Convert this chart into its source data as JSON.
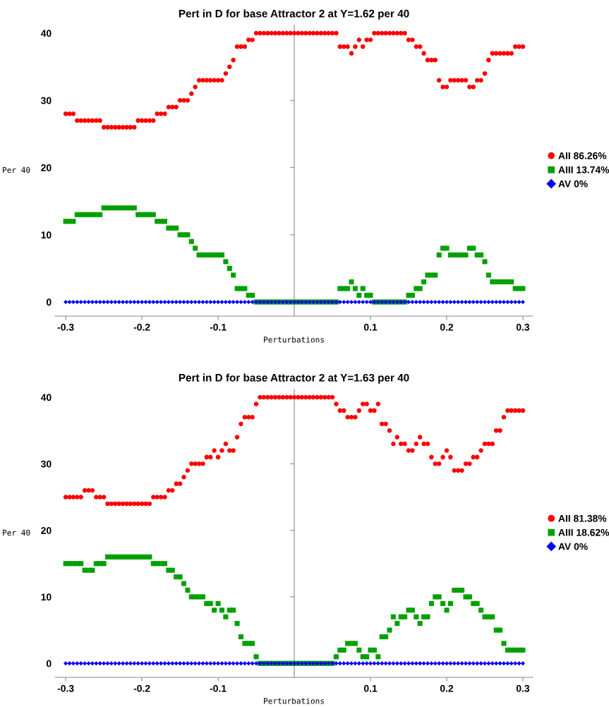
{
  "chart_data": [
    {
      "type": "scatter",
      "title": "Pert in D for base Attractor 2 at Y=1.62 per 40",
      "xlabel": "Perturbations",
      "ylabel": "Per 40",
      "legend": "right",
      "grid": false,
      "x": [
        -0.3,
        -0.295,
        -0.29,
        -0.285,
        -0.28,
        -0.275,
        -0.27,
        -0.265,
        -0.26,
        -0.255,
        -0.25,
        -0.245,
        -0.24,
        -0.235,
        -0.23,
        -0.225,
        -0.22,
        -0.215,
        -0.21,
        -0.205,
        -0.2,
        -0.195,
        -0.19,
        -0.185,
        -0.18,
        -0.175,
        -0.17,
        -0.165,
        -0.16,
        -0.155,
        -0.15,
        -0.145,
        -0.14,
        -0.135,
        -0.13,
        -0.125,
        -0.12,
        -0.115,
        -0.11,
        -0.105,
        -0.1,
        -0.095,
        -0.09,
        -0.085,
        -0.08,
        -0.075,
        -0.07,
        -0.065,
        -0.06,
        -0.055,
        -0.05,
        -0.045,
        -0.04,
        -0.035,
        -0.03,
        -0.025,
        -0.02,
        -0.015,
        -0.01,
        -0.005,
        0,
        0.005,
        0.01,
        0.015,
        0.02,
        0.025,
        0.03,
        0.035,
        0.04,
        0.045,
        0.05,
        0.055,
        0.06,
        0.065,
        0.07,
        0.075,
        0.08,
        0.085,
        0.09,
        0.095,
        0.1,
        0.105,
        0.11,
        0.115,
        0.12,
        0.125,
        0.13,
        0.135,
        0.14,
        0.145,
        0.15,
        0.155,
        0.16,
        0.165,
        0.17,
        0.175,
        0.18,
        0.185,
        0.19,
        0.195,
        0.2,
        0.205,
        0.21,
        0.215,
        0.22,
        0.225,
        0.23,
        0.235,
        0.24,
        0.245,
        0.25,
        0.255,
        0.26,
        0.265,
        0.27,
        0.275,
        0.28,
        0.285,
        0.29,
        0.295,
        0.3
      ],
      "xlim": [
        -0.314,
        0.313
      ],
      "xticks": [
        -0.3,
        -0.2,
        -0.1,
        0.1,
        0.2,
        0.3
      ],
      "ylim": [
        -2.1,
        41.2
      ],
      "yticks": [
        0,
        10,
        20,
        30,
        40
      ],
      "series": [
        {
          "name": "AII 86.26%",
          "color": "#ff0000",
          "marker": "circle",
          "values": [
            28,
            28,
            28,
            27,
            27,
            27,
            27,
            27,
            27,
            27,
            26,
            26,
            26,
            26,
            26,
            26,
            26,
            26,
            26,
            27,
            27,
            27,
            27,
            27,
            28,
            28,
            28,
            29,
            29,
            29,
            30,
            30,
            30,
            31,
            32,
            33,
            33,
            33,
            33,
            33,
            33,
            33,
            34,
            35,
            36,
            38,
            38,
            38,
            39,
            39,
            40,
            40,
            40,
            40,
            40,
            40,
            40,
            40,
            40,
            40,
            40,
            40,
            40,
            40,
            40,
            40,
            40,
            40,
            40,
            40,
            40,
            40,
            38,
            38,
            38,
            37,
            38,
            39,
            38,
            39,
            39,
            40,
            40,
            40,
            40,
            40,
            40,
            40,
            40,
            40,
            39,
            39,
            38,
            38,
            37,
            36,
            36,
            36,
            33,
            32,
            32,
            33,
            33,
            33,
            33,
            33,
            32,
            32,
            33,
            33,
            34,
            36,
            37,
            37,
            37,
            37,
            37,
            37,
            38,
            38,
            38
          ]
        },
        {
          "name": "AIII 13.74%",
          "color": "#00a000",
          "marker": "square",
          "values": [
            12,
            12,
            12,
            13,
            13,
            13,
            13,
            13,
            13,
            13,
            14,
            14,
            14,
            14,
            14,
            14,
            14,
            14,
            14,
            13,
            13,
            13,
            13,
            13,
            12,
            12,
            12,
            11,
            11,
            11,
            10,
            10,
            10,
            9,
            8,
            7,
            7,
            7,
            7,
            7,
            7,
            7,
            6,
            5,
            4,
            2,
            2,
            2,
            1,
            1,
            0,
            0,
            0,
            0,
            0,
            0,
            0,
            0,
            0,
            0,
            0,
            0,
            0,
            0,
            0,
            0,
            0,
            0,
            0,
            0,
            0,
            0,
            2,
            2,
            2,
            3,
            2,
            1,
            2,
            1,
            1,
            0,
            0,
            0,
            0,
            0,
            0,
            0,
            0,
            0,
            1,
            1,
            2,
            2,
            3,
            4,
            4,
            4,
            7,
            8,
            8,
            7,
            7,
            7,
            7,
            7,
            8,
            8,
            7,
            7,
            6,
            4,
            3,
            3,
            3,
            3,
            3,
            3,
            2,
            2,
            2
          ]
        },
        {
          "name": "AV 0%",
          "color": "#0000ff",
          "marker": "diamond",
          "values": [
            0,
            0,
            0,
            0,
            0,
            0,
            0,
            0,
            0,
            0,
            0,
            0,
            0,
            0,
            0,
            0,
            0,
            0,
            0,
            0,
            0,
            0,
            0,
            0,
            0,
            0,
            0,
            0,
            0,
            0,
            0,
            0,
            0,
            0,
            0,
            0,
            0,
            0,
            0,
            0,
            0,
            0,
            0,
            0,
            0,
            0,
            0,
            0,
            0,
            0,
            0,
            0,
            0,
            0,
            0,
            0,
            0,
            0,
            0,
            0,
            0,
            0,
            0,
            0,
            0,
            0,
            0,
            0,
            0,
            0,
            0,
            0,
            0,
            0,
            0,
            0,
            0,
            0,
            0,
            0,
            0,
            0,
            0,
            0,
            0,
            0,
            0,
            0,
            0,
            0,
            0,
            0,
            0,
            0,
            0,
            0,
            0,
            0,
            0,
            0,
            0,
            0,
            0,
            0,
            0,
            0,
            0,
            0,
            0,
            0,
            0,
            0,
            0,
            0,
            0,
            0,
            0,
            0,
            0,
            0,
            0
          ]
        }
      ]
    },
    {
      "type": "scatter",
      "title": "Pert in D for base Attractor 2 at Y=1.63 per 40",
      "xlabel": "Perturbations",
      "ylabel": "Per 40",
      "legend": "right",
      "grid": false,
      "x": [
        -0.3,
        -0.295,
        -0.29,
        -0.285,
        -0.28,
        -0.275,
        -0.27,
        -0.265,
        -0.26,
        -0.255,
        -0.25,
        -0.245,
        -0.24,
        -0.235,
        -0.23,
        -0.225,
        -0.22,
        -0.215,
        -0.21,
        -0.205,
        -0.2,
        -0.195,
        -0.19,
        -0.185,
        -0.18,
        -0.175,
        -0.17,
        -0.165,
        -0.16,
        -0.155,
        -0.15,
        -0.145,
        -0.14,
        -0.135,
        -0.13,
        -0.125,
        -0.12,
        -0.115,
        -0.11,
        -0.105,
        -0.1,
        -0.095,
        -0.09,
        -0.085,
        -0.08,
        -0.075,
        -0.07,
        -0.065,
        -0.06,
        -0.055,
        -0.05,
        -0.045,
        -0.04,
        -0.035,
        -0.03,
        -0.025,
        -0.02,
        -0.015,
        -0.01,
        -0.005,
        0,
        0.005,
        0.01,
        0.015,
        0.02,
        0.025,
        0.03,
        0.035,
        0.04,
        0.045,
        0.05,
        0.055,
        0.06,
        0.065,
        0.07,
        0.075,
        0.08,
        0.085,
        0.09,
        0.095,
        0.1,
        0.105,
        0.11,
        0.115,
        0.12,
        0.125,
        0.13,
        0.135,
        0.14,
        0.145,
        0.15,
        0.155,
        0.16,
        0.165,
        0.17,
        0.175,
        0.18,
        0.185,
        0.19,
        0.195,
        0.2,
        0.205,
        0.21,
        0.215,
        0.22,
        0.225,
        0.23,
        0.235,
        0.24,
        0.245,
        0.25,
        0.255,
        0.26,
        0.265,
        0.27,
        0.275,
        0.28,
        0.285,
        0.29,
        0.295,
        0.3
      ],
      "xlim": [
        -0.314,
        0.313
      ],
      "xticks": [
        -0.3,
        -0.2,
        -0.1,
        0.1,
        0.2,
        0.3
      ],
      "ylim": [
        -2.1,
        41.2
      ],
      "yticks": [
        0,
        10,
        20,
        30,
        40
      ],
      "series": [
        {
          "name": "AII 81.38%",
          "color": "#ff0000",
          "marker": "circle",
          "values": [
            25,
            25,
            25,
            25,
            25,
            26,
            26,
            26,
            25,
            25,
            25,
            24,
            24,
            24,
            24,
            24,
            24,
            24,
            24,
            24,
            24,
            24,
            24,
            25,
            25,
            25,
            25,
            26,
            26,
            27,
            27,
            28,
            29,
            30,
            30,
            30,
            30,
            31,
            31,
            32,
            31,
            32,
            33,
            32,
            32,
            34,
            36,
            37,
            37,
            37,
            39,
            40,
            40,
            40,
            40,
            40,
            40,
            40,
            40,
            40,
            40,
            40,
            40,
            40,
            40,
            40,
            40,
            40,
            40,
            40,
            40,
            39,
            38,
            38,
            37,
            37,
            37,
            38,
            39,
            39,
            38,
            38,
            39,
            36,
            36,
            35,
            33,
            34,
            33,
            33,
            32,
            32,
            33,
            34,
            33,
            33,
            31,
            30,
            30,
            31,
            32,
            31,
            29,
            29,
            29,
            30,
            30,
            31,
            31,
            32,
            33,
            33,
            33,
            35,
            35,
            37,
            38,
            38,
            38,
            38,
            38
          ]
        },
        {
          "name": "AIII 18.62%",
          "color": "#00a000",
          "marker": "square",
          "values": [
            15,
            15,
            15,
            15,
            15,
            14,
            14,
            14,
            15,
            15,
            15,
            16,
            16,
            16,
            16,
            16,
            16,
            16,
            16,
            16,
            16,
            16,
            16,
            15,
            15,
            15,
            15,
            14,
            14,
            13,
            13,
            12,
            11,
            10,
            10,
            10,
            10,
            9,
            9,
            8,
            9,
            8,
            7,
            8,
            8,
            6,
            4,
            3,
            3,
            3,
            1,
            0,
            0,
            0,
            0,
            0,
            0,
            0,
            0,
            0,
            0,
            0,
            0,
            0,
            0,
            0,
            0,
            0,
            0,
            0,
            0,
            1,
            2,
            2,
            3,
            3,
            3,
            2,
            1,
            1,
            2,
            2,
            1,
            4,
            4,
            5,
            7,
            6,
            7,
            7,
            8,
            8,
            7,
            6,
            7,
            7,
            9,
            10,
            10,
            9,
            8,
            9,
            11,
            11,
            11,
            10,
            10,
            9,
            9,
            8,
            7,
            7,
            7,
            5,
            5,
            3,
            2,
            2,
            2,
            2,
            2
          ]
        },
        {
          "name": "AV 0%",
          "color": "#0000ff",
          "marker": "diamond",
          "values": [
            0,
            0,
            0,
            0,
            0,
            0,
            0,
            0,
            0,
            0,
            0,
            0,
            0,
            0,
            0,
            0,
            0,
            0,
            0,
            0,
            0,
            0,
            0,
            0,
            0,
            0,
            0,
            0,
            0,
            0,
            0,
            0,
            0,
            0,
            0,
            0,
            0,
            0,
            0,
            0,
            0,
            0,
            0,
            0,
            0,
            0,
            0,
            0,
            0,
            0,
            0,
            0,
            0,
            0,
            0,
            0,
            0,
            0,
            0,
            0,
            0,
            0,
            0,
            0,
            0,
            0,
            0,
            0,
            0,
            0,
            0,
            0,
            0,
            0,
            0,
            0,
            0,
            0,
            0,
            0,
            0,
            0,
            0,
            0,
            0,
            0,
            0,
            0,
            0,
            0,
            0,
            0,
            0,
            0,
            0,
            0,
            0,
            0,
            0,
            0,
            0,
            0,
            0,
            0,
            0,
            0,
            0,
            0,
            0,
            0,
            0,
            0,
            0,
            0,
            0,
            0,
            0,
            0,
            0,
            0,
            0
          ]
        }
      ]
    }
  ]
}
